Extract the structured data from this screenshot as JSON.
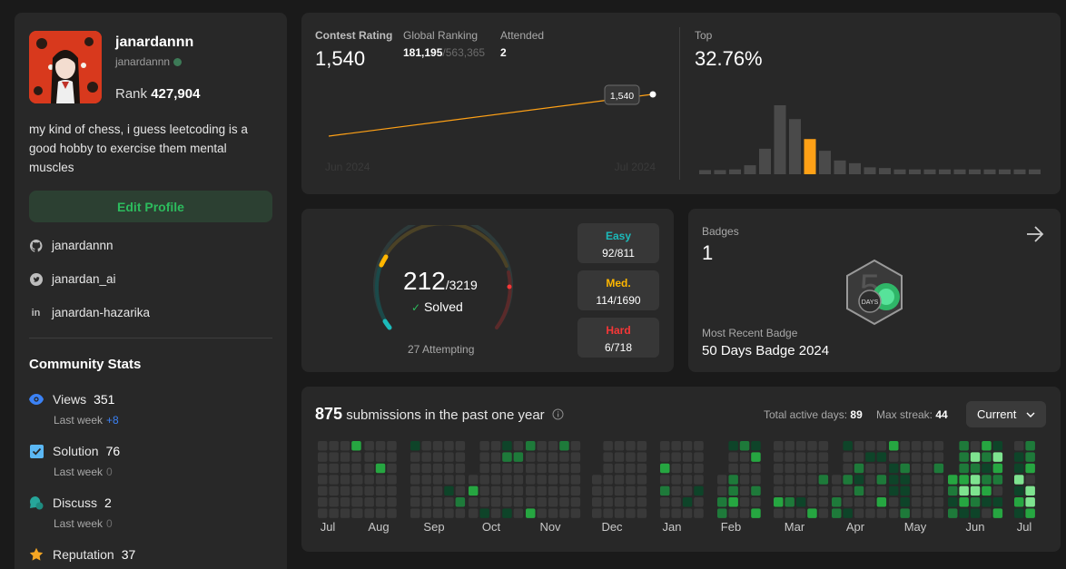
{
  "profile": {
    "display_name": "janardannn",
    "handle": "janardannn",
    "rank_label": "Rank",
    "rank_value": "427,904",
    "bio": "my kind of chess, i guess leetcoding is a good hobby to exercise them mental muscles",
    "edit_button": "Edit Profile",
    "links": [
      {
        "icon": "github-icon",
        "text": "janardannn"
      },
      {
        "icon": "twitter-icon",
        "text": "janardan_ai"
      },
      {
        "icon": "linkedin-icon",
        "text": "janardan-hazarika"
      }
    ]
  },
  "community": {
    "title": "Community Stats",
    "stats": [
      {
        "icon": "eye-icon",
        "label": "Views",
        "value": "351",
        "sub_label": "Last week",
        "sub_value": "+8",
        "color": "#3b82f6"
      },
      {
        "icon": "checkbox-icon",
        "label": "Solution",
        "value": "76",
        "sub_label": "Last week",
        "sub_value": "0",
        "color": "#5bb8f5"
      },
      {
        "icon": "discuss-icon",
        "label": "Discuss",
        "value": "2",
        "sub_label": "Last week",
        "sub_value": "0",
        "color": "#26a69a"
      },
      {
        "icon": "star-icon",
        "label": "Reputation",
        "value": "37",
        "color": "#f5a623"
      }
    ]
  },
  "contest": {
    "rating_label": "Contest Rating",
    "rating_value": "1,540",
    "global_label": "Global Ranking",
    "global_value": "181,195",
    "global_total": "/563,365",
    "attended_label": "Attended",
    "attended_value": "2",
    "top_label": "Top",
    "top_value": "32.76%",
    "tooltip": "1,540",
    "x_start": "Jun 2024",
    "x_end": "Jul 2024",
    "histogram": [
      0.06,
      0.06,
      0.07,
      0.13,
      0.37,
      1.0,
      0.8,
      0.51,
      0.34,
      0.2,
      0.16,
      0.1,
      0.09,
      0.07,
      0.07,
      0.07,
      0.07,
      0.07,
      0.07,
      0.07,
      0.07,
      0.07,
      0.07
    ],
    "highlight_index": 7,
    "accent": "#ffa116"
  },
  "solved": {
    "count": "212",
    "total": "/3219",
    "check": "✓",
    "solved_label": "Solved",
    "attempting": "27 Attempting",
    "difficulties": [
      {
        "name": "Easy",
        "value": "92/811",
        "color": "#1cbaba"
      },
      {
        "name": "Med.",
        "value": "114/1690",
        "color": "#ffb700"
      },
      {
        "name": "Hard",
        "value": "6/718",
        "color": "#f63737"
      }
    ]
  },
  "badges": {
    "label": "Badges",
    "count": "1",
    "recent_label": "Most Recent Badge",
    "recent_name": "50 Days Badge 2024",
    "badge_text": "DAYS"
  },
  "submissions": {
    "count": "875",
    "text": "submissions in the past one year",
    "active_label": "Total active days:",
    "active_value": "89",
    "streak_label": "Max streak:",
    "streak_value": "44",
    "select": "Current",
    "months": [
      "Jul",
      "Aug",
      "Sep",
      "Oct",
      "Nov",
      "Dec",
      "Jan",
      "Feb",
      "Mar",
      "Apr",
      "May",
      "Jun",
      "Jul"
    ]
  }
}
